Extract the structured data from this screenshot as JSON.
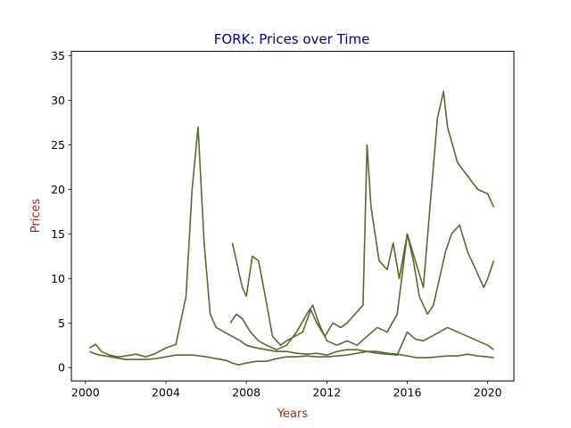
{
  "chart_data": {
    "type": "line",
    "title": "FORK: Prices over Time",
    "xlabel": "Years",
    "ylabel": "Prices",
    "xlim": [
      1999.3,
      2021.3
    ],
    "ylim": [
      -1.5,
      35.5
    ],
    "x_ticks": [
      2000,
      2004,
      2008,
      2012,
      2016,
      2020
    ],
    "y_ticks": [
      0,
      5,
      10,
      15,
      20,
      25,
      30,
      35
    ],
    "grid": false,
    "legend": "none",
    "series": [
      {
        "x": [
          2000.2,
          2000.4,
          2000.7,
          2001.0,
          2001.5,
          2002.0,
          2002.5,
          2003.0,
          2003.5,
          2004.0,
          2004.5,
          2005.0,
          2005.3,
          2005.7,
          2006.0,
          2006.5,
          2007.0,
          2007.3,
          2007.6,
          2008.0,
          2008.5,
          2009.0,
          2009.5,
          2010.0,
          2010.5,
          2011.0,
          2011.5,
          2012.0,
          2012.5,
          2013.0,
          2013.5,
          2014.0,
          2014.5,
          2015.0,
          2015.5,
          2016.0,
          2016.5,
          2017.0,
          2017.5,
          2018.0,
          2018.5,
          2019.0,
          2019.5,
          2020.0,
          2020.3
        ],
        "values": [
          1.8,
          1.6,
          1.4,
          1.3,
          1.1,
          0.9,
          0.9,
          0.9,
          1.0,
          1.2,
          1.4,
          1.4,
          1.4,
          1.3,
          1.2,
          1.0,
          0.8,
          0.5,
          0.3,
          0.5,
          0.7,
          0.7,
          1.0,
          1.2,
          1.2,
          1.3,
          1.2,
          1.2,
          1.3,
          1.4,
          1.6,
          1.8,
          1.8,
          1.6,
          1.5,
          1.3,
          1.1,
          1.1,
          1.2,
          1.3,
          1.3,
          1.5,
          1.3,
          1.2,
          1.1
        ]
      },
      {
        "x": [
          2000.2,
          2000.5,
          2000.8,
          2001.2,
          2001.6,
          2002.0,
          2002.5,
          2003.0,
          2003.5,
          2004.0,
          2004.5,
          2005.0,
          2005.3,
          2005.6,
          2005.9,
          2006.2,
          2006.5,
          2006.9,
          2007.3,
          2007.7,
          2008.0,
          2008.5,
          2009.0,
          2009.5,
          2010.0,
          2010.5,
          2011.0,
          2011.5,
          2012.0,
          2012.5,
          2013.0,
          2013.5,
          2014.0,
          2014.5,
          2015.0,
          2015.5,
          2016.0,
          2016.4,
          2016.8,
          2017.2,
          2017.6,
          2018.0,
          2018.5,
          2019.0,
          2019.5,
          2020.0,
          2020.3
        ],
        "values": [
          2.2,
          2.6,
          1.8,
          1.4,
          1.2,
          1.3,
          1.5,
          1.2,
          1.6,
          2.2,
          2.6,
          8.0,
          20.0,
          27.0,
          14.0,
          6.0,
          4.5,
          4.0,
          3.5,
          3.0,
          2.5,
          2.2,
          2.0,
          1.8,
          1.8,
          1.6,
          1.5,
          1.6,
          1.4,
          1.8,
          2.0,
          2.0,
          1.8,
          1.6,
          1.5,
          1.4,
          4.0,
          3.2,
          3.0,
          3.5,
          4.0,
          4.5,
          4.0,
          3.5,
          3.0,
          2.5,
          2.0
        ]
      },
      {
        "x": [
          2007.3,
          2007.5,
          2007.8,
          2008.0,
          2008.3,
          2008.6,
          2008.9,
          2009.3,
          2009.7,
          2010.0,
          2010.4,
          2010.8,
          2011.2,
          2011.5,
          2011.9,
          2012.3,
          2012.7,
          2013.0,
          2013.4,
          2013.8,
          2014.0,
          2014.2,
          2014.6,
          2015.0,
          2015.3,
          2015.6,
          2016.0,
          2016.4,
          2016.8,
          2017.2,
          2017.5,
          2017.8,
          2018.0,
          2018.5,
          2019.0,
          2019.5,
          2020.0,
          2020.3
        ],
        "values": [
          14.0,
          12.0,
          9.0,
          8.0,
          12.5,
          12.0,
          8.5,
          3.5,
          2.5,
          3.0,
          3.5,
          4.0,
          6.5,
          5.0,
          3.5,
          5.0,
          4.5,
          5.0,
          6.0,
          7.0,
          25.0,
          18.0,
          12.0,
          11.0,
          14.0,
          10.0,
          15.0,
          12.0,
          9.0,
          20.0,
          28.0,
          31.0,
          27.0,
          23.0,
          21.5,
          20.0,
          19.5,
          18.0
        ]
      },
      {
        "x": [
          2007.2,
          2007.5,
          2007.8,
          2008.2,
          2008.6,
          2009.0,
          2009.5,
          2010.0,
          2010.5,
          2011.0,
          2011.3,
          2011.6,
          2012.0,
          2012.5,
          2013.0,
          2013.5,
          2014.0,
          2014.5,
          2015.0,
          2015.5,
          2016.0,
          2016.3,
          2016.6,
          2017.0,
          2017.3,
          2017.6,
          2017.9,
          2018.2,
          2018.6,
          2019.0,
          2019.4,
          2019.8,
          2020.0,
          2020.3
        ],
        "values": [
          5.0,
          6.0,
          5.5,
          4.0,
          3.0,
          2.5,
          2.0,
          2.5,
          4.0,
          6.0,
          7.0,
          5.0,
          3.0,
          2.5,
          3.0,
          2.5,
          3.5,
          4.5,
          4.0,
          6.0,
          15.0,
          12.0,
          8.0,
          6.0,
          7.0,
          10.0,
          13.0,
          15.0,
          16.0,
          13.0,
          11.0,
          9.0,
          10.0,
          12.0
        ]
      }
    ]
  }
}
